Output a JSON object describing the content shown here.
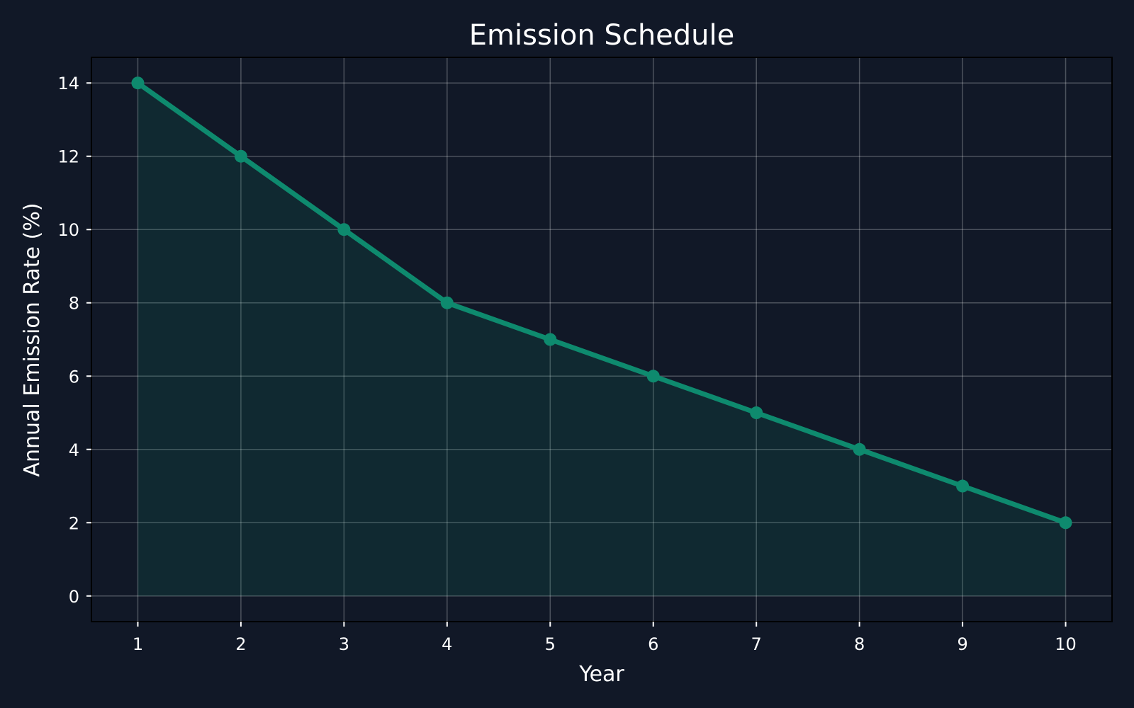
{
  "colors": {
    "background": "#111827",
    "line": "#0e8a6e",
    "fill": "#0e8a6e",
    "text": "#ffffff"
  },
  "chart_data": {
    "type": "line",
    "title": "Emission Schedule",
    "xlabel": "Year",
    "ylabel": "Annual Emission Rate (%)",
    "x": [
      1,
      2,
      3,
      4,
      5,
      6,
      7,
      8,
      9,
      10
    ],
    "series": [
      {
        "values": [
          14,
          12,
          10,
          8,
          7,
          6,
          5,
          4,
          3,
          2
        ]
      }
    ],
    "xlim": [
      0.55,
      10.45
    ],
    "ylim": [
      -0.7,
      14.7
    ],
    "xticks": [
      1,
      2,
      3,
      4,
      5,
      6,
      7,
      8,
      9,
      10
    ],
    "yticks": [
      0,
      2,
      4,
      6,
      8,
      10,
      12,
      14
    ],
    "grid": true,
    "area_fill": true,
    "markers": true
  }
}
